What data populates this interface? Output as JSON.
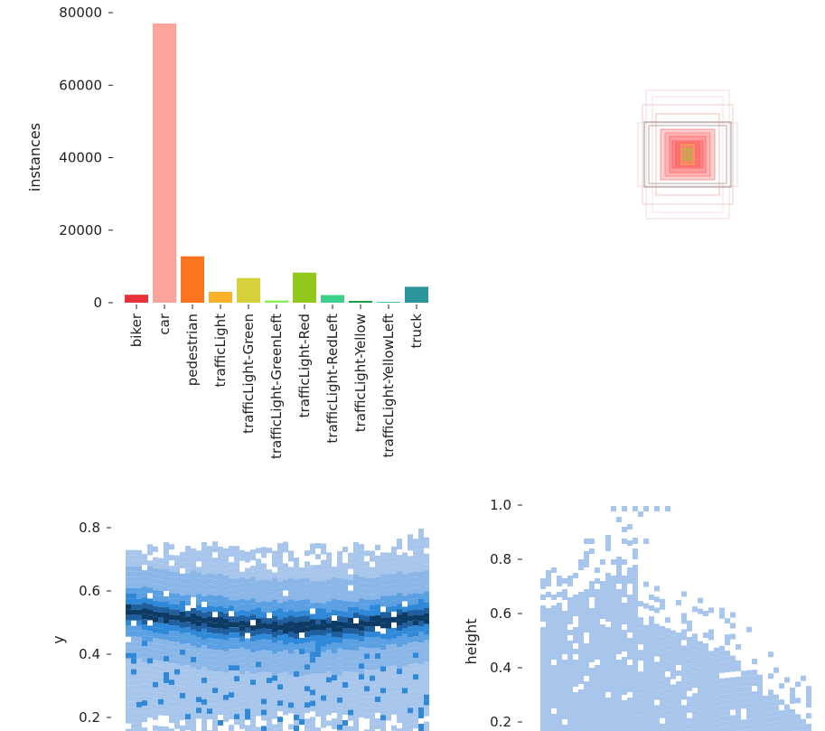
{
  "chart_data": [
    {
      "type": "bar",
      "categories": [
        "biker",
        "car",
        "pedestrian",
        "trafficLight",
        "trafficLight-Green",
        "trafficLight-GreenLeft",
        "trafficLight-Red",
        "trafficLight-RedLeft",
        "trafficLight-Yellow",
        "trafficLight-YellowLeft",
        "truck"
      ],
      "values": [
        2200,
        77000,
        12800,
        3000,
        6800,
        600,
        8300,
        2100,
        500,
        200,
        4400
      ],
      "colors": [
        "#e8323a",
        "#fca39b",
        "#fd7420",
        "#fbb22a",
        "#d6d03a",
        "#86f05a",
        "#92c81b",
        "#3bd18b",
        "#1ca242",
        "#1ebc8a",
        "#2a969c"
      ],
      "xlabel": "",
      "ylabel": "instances",
      "ylim": [
        0,
        80000
      ],
      "yticks": [
        "0",
        "20000",
        "40000",
        "60000",
        "80000"
      ]
    },
    {
      "type": "other",
      "description_free": true,
      "title": "",
      "colors": [
        "#f7a9a9",
        "#ff6f6f",
        "#7a7a7a"
      ]
    },
    {
      "type": "heatmap",
      "xlabel": "",
      "ylabel": "y",
      "yticks": [
        "0.2",
        "0.4",
        "0.6",
        "0.8"
      ],
      "colors": [
        "#a8c6ec",
        "#2f88d8",
        "#0d3b66"
      ]
    },
    {
      "type": "heatmap",
      "xlabel": "",
      "ylabel": "height",
      "yticks": [
        "0.2",
        "0.4",
        "0.6",
        "0.8",
        "1.0"
      ],
      "colors": [
        "#a8c6ec"
      ]
    }
  ]
}
